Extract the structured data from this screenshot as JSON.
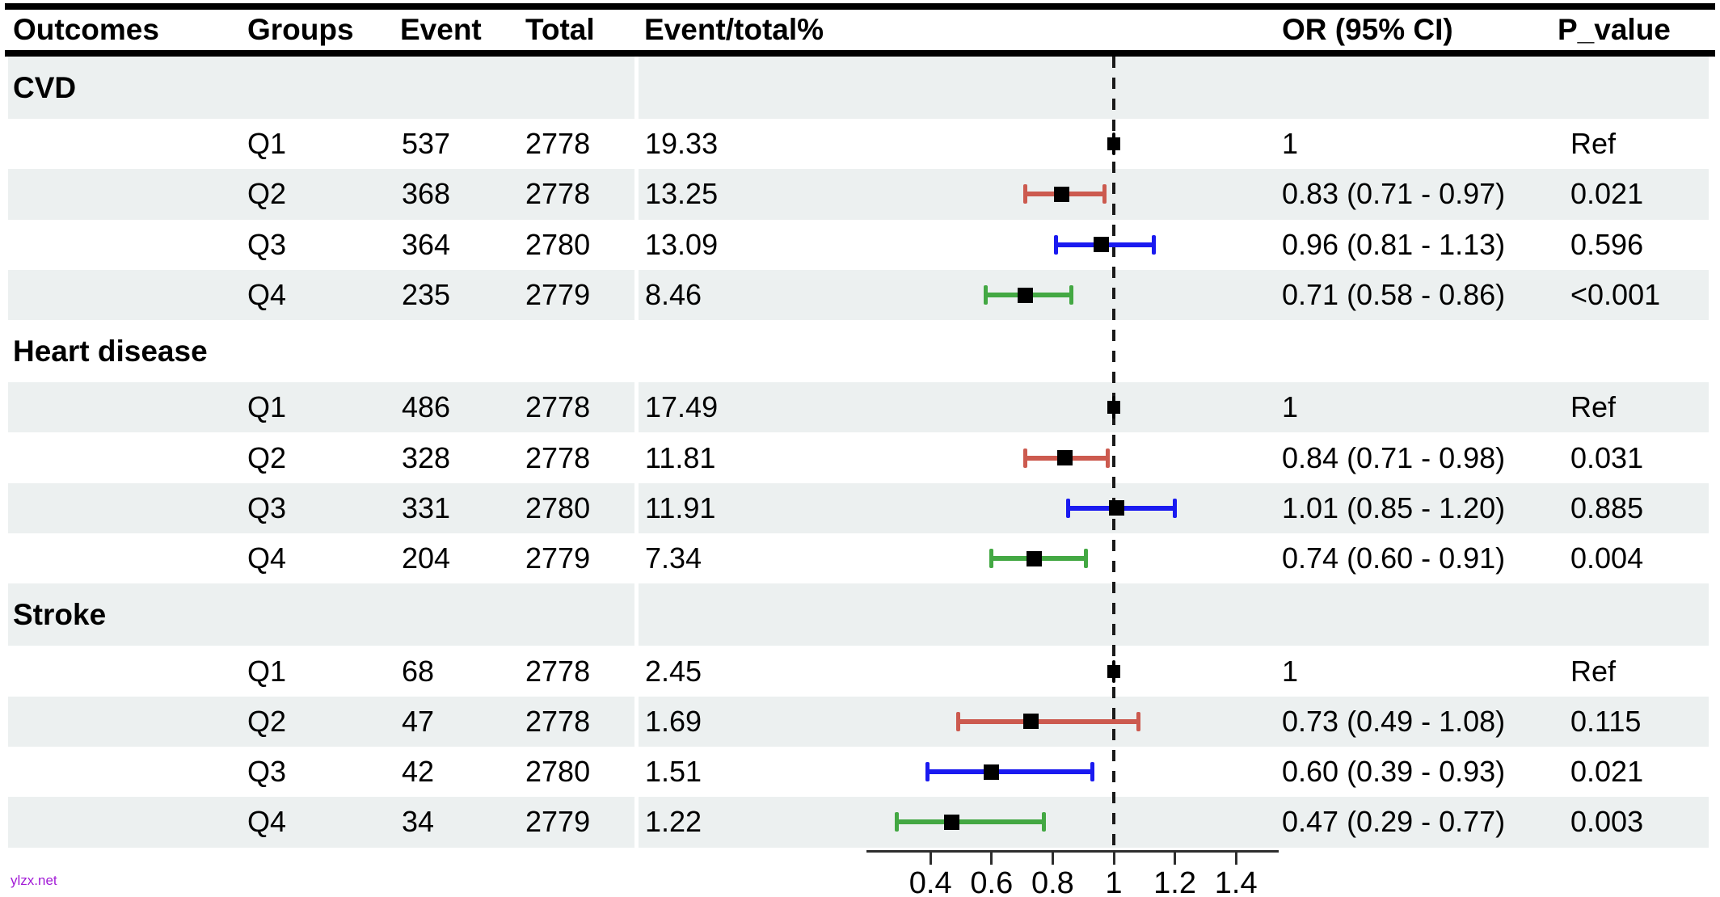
{
  "watermark": {
    "text": "ylzx.net",
    "color": "#A21BD6"
  },
  "colors": {
    "q1": "#111111",
    "q2": "#CC5A4F",
    "q3": "#1A1AF0",
    "q4": "#43A843",
    "stripe": "#ECF0F0",
    "marker": "#000000",
    "reference_line": "#1a1a1a",
    "axis": "#2e2e2e"
  },
  "chart_data": {
    "type": "forest",
    "columns": [
      "Outcomes",
      "Groups",
      "Event",
      "Total",
      "Event/total%",
      "OR (95% CI)",
      "P_value"
    ],
    "x_axis": {
      "scale": "linear",
      "ticks": [
        0.4,
        0.6,
        0.8,
        1,
        1.2,
        1.4
      ],
      "tick_labels": [
        "0.4",
        "0.6",
        "0.8",
        "1",
        "1.2",
        "1.4"
      ],
      "range": [
        0.19,
        1.54
      ],
      "reference_line": 1,
      "grid": false
    },
    "sections": [
      {
        "outcome": "CVD",
        "rows": [
          {
            "group": "Q1",
            "event": "537",
            "total": "2778",
            "pct": "19.33",
            "or": 1,
            "low": 1,
            "high": 1,
            "or_ci": "1",
            "p": "Ref",
            "series": "q1"
          },
          {
            "group": "Q2",
            "event": "368",
            "total": "2778",
            "pct": "13.25",
            "or": 0.83,
            "low": 0.71,
            "high": 0.97,
            "or_ci": "0.83 (0.71 - 0.97)",
            "p": "0.021",
            "series": "q2"
          },
          {
            "group": "Q3",
            "event": "364",
            "total": "2780",
            "pct": "13.09",
            "or": 0.96,
            "low": 0.81,
            "high": 1.13,
            "or_ci": "0.96 (0.81 - 1.13)",
            "p": "0.596",
            "series": "q3"
          },
          {
            "group": "Q4",
            "event": "235",
            "total": "2779",
            "pct": "8.46",
            "or": 0.71,
            "low": 0.58,
            "high": 0.86,
            "or_ci": "0.71 (0.58 - 0.86)",
            "p": "<0.001",
            "series": "q4"
          }
        ]
      },
      {
        "outcome": "Heart disease",
        "rows": [
          {
            "group": "Q1",
            "event": "486",
            "total": "2778",
            "pct": "17.49",
            "or": 1,
            "low": 1,
            "high": 1,
            "or_ci": "1",
            "p": "Ref",
            "series": "q1"
          },
          {
            "group": "Q2",
            "event": "328",
            "total": "2778",
            "pct": "11.81",
            "or": 0.84,
            "low": 0.71,
            "high": 0.98,
            "or_ci": "0.84 (0.71 - 0.98)",
            "p": "0.031",
            "series": "q2"
          },
          {
            "group": "Q3",
            "event": "331",
            "total": "2780",
            "pct": "11.91",
            "or": 1.01,
            "low": 0.85,
            "high": 1.2,
            "or_ci": "1.01 (0.85 - 1.20)",
            "p": "0.885",
            "series": "q3"
          },
          {
            "group": "Q4",
            "event": "204",
            "total": "2779",
            "pct": "7.34",
            "or": 0.74,
            "low": 0.6,
            "high": 0.91,
            "or_ci": "0.74 (0.60 - 0.91)",
            "p": "0.004",
            "series": "q4"
          }
        ]
      },
      {
        "outcome": "Stroke",
        "rows": [
          {
            "group": "Q1",
            "event": "68",
            "total": "2778",
            "pct": "2.45",
            "or": 1,
            "low": 1,
            "high": 1,
            "or_ci": "1",
            "p": "Ref",
            "series": "q1"
          },
          {
            "group": "Q2",
            "event": "47",
            "total": "2778",
            "pct": "1.69",
            "or": 0.73,
            "low": 0.49,
            "high": 1.08,
            "or_ci": "0.73 (0.49 - 1.08)",
            "p": "0.115",
            "series": "q2"
          },
          {
            "group": "Q3",
            "event": "42",
            "total": "2780",
            "pct": "1.51",
            "or": 0.6,
            "low": 0.39,
            "high": 0.93,
            "or_ci": "0.60 (0.39 - 0.93)",
            "p": "0.021",
            "series": "q3"
          },
          {
            "group": "Q4",
            "event": "34",
            "total": "2779",
            "pct": "1.22",
            "or": 0.47,
            "low": 0.29,
            "high": 0.77,
            "or_ci": "0.47 (0.29 - 0.77)",
            "p": "0.003",
            "series": "q4"
          }
        ]
      }
    ]
  }
}
